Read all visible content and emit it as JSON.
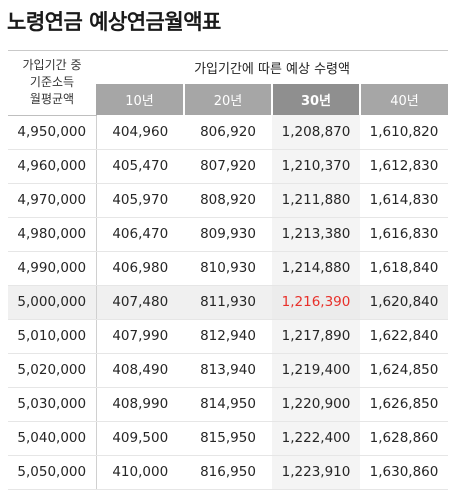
{
  "title": "노령연금 예상연금월액표",
  "header": {
    "left_lines": [
      "가입기간 중",
      "기준소득",
      "월평균액"
    ],
    "group_label": "가입기간에 따른 예상 수령액",
    "years": [
      "10년",
      "20년",
      "30년",
      "40년"
    ]
  },
  "rows": [
    {
      "income": "4,950,000",
      "y10": "404,960",
      "y20": "806,920",
      "y30": "1,208,870",
      "y40": "1,610,820"
    },
    {
      "income": "4,960,000",
      "y10": "405,470",
      "y20": "807,920",
      "y30": "1,210,370",
      "y40": "1,612,830"
    },
    {
      "income": "4,970,000",
      "y10": "405,970",
      "y20": "808,920",
      "y30": "1,211,880",
      "y40": "1,614,830"
    },
    {
      "income": "4,980,000",
      "y10": "406,470",
      "y20": "809,930",
      "y30": "1,213,380",
      "y40": "1,616,830"
    },
    {
      "income": "4,990,000",
      "y10": "406,980",
      "y20": "810,930",
      "y30": "1,214,880",
      "y40": "1,618,840"
    },
    {
      "income": "5,000,000",
      "y10": "407,480",
      "y20": "811,930",
      "y30": "1,216,390",
      "y40": "1,620,840"
    },
    {
      "income": "5,010,000",
      "y10": "407,990",
      "y20": "812,940",
      "y30": "1,217,890",
      "y40": "1,622,840"
    },
    {
      "income": "5,020,000",
      "y10": "408,490",
      "y20": "813,940",
      "y30": "1,219,400",
      "y40": "1,624,850"
    },
    {
      "income": "5,030,000",
      "y10": "408,990",
      "y20": "814,950",
      "y30": "1,220,900",
      "y40": "1,626,850"
    },
    {
      "income": "5,040,000",
      "y10": "409,500",
      "y20": "815,950",
      "y30": "1,222,400",
      "y40": "1,628,860"
    },
    {
      "income": "5,050,000",
      "y10": "410,000",
      "y20": "816,950",
      "y30": "1,223,910",
      "y40": "1,630,860"
    }
  ],
  "colors": {
    "header_bg": "#a6a6a6",
    "header_highlight_bg": "#8f8f8f",
    "highlight_row_bg": "#f0f0f0",
    "highlight_value": "#e8302a"
  }
}
